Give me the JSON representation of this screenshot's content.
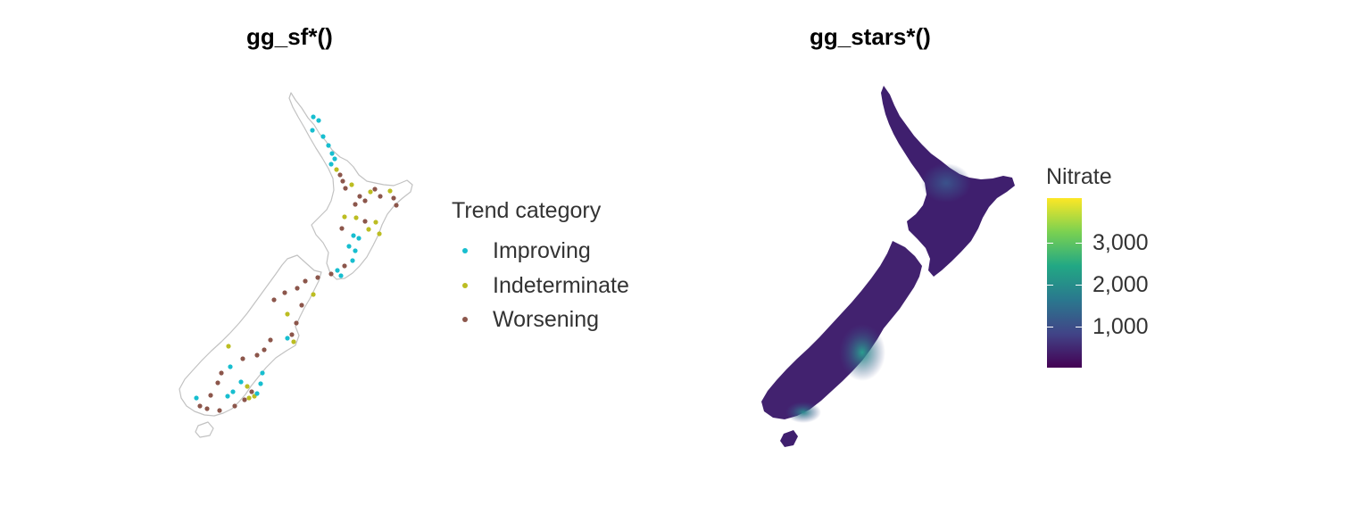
{
  "panels": {
    "left": {
      "title": "gg_sf*()",
      "legend": {
        "title": "Trend category",
        "items": [
          {
            "label": "Improving",
            "color": "#17becf"
          },
          {
            "label": "Indeterminate",
            "color": "#bcbd22"
          },
          {
            "label": "Worsening",
            "color": "#8c564b"
          }
        ]
      }
    },
    "right": {
      "title": "gg_stars*()",
      "legend": {
        "title": "Nitrate",
        "ticks": [
          "1,000",
          "2,000",
          "3,000"
        ],
        "palette": "viridis"
      }
    }
  }
}
